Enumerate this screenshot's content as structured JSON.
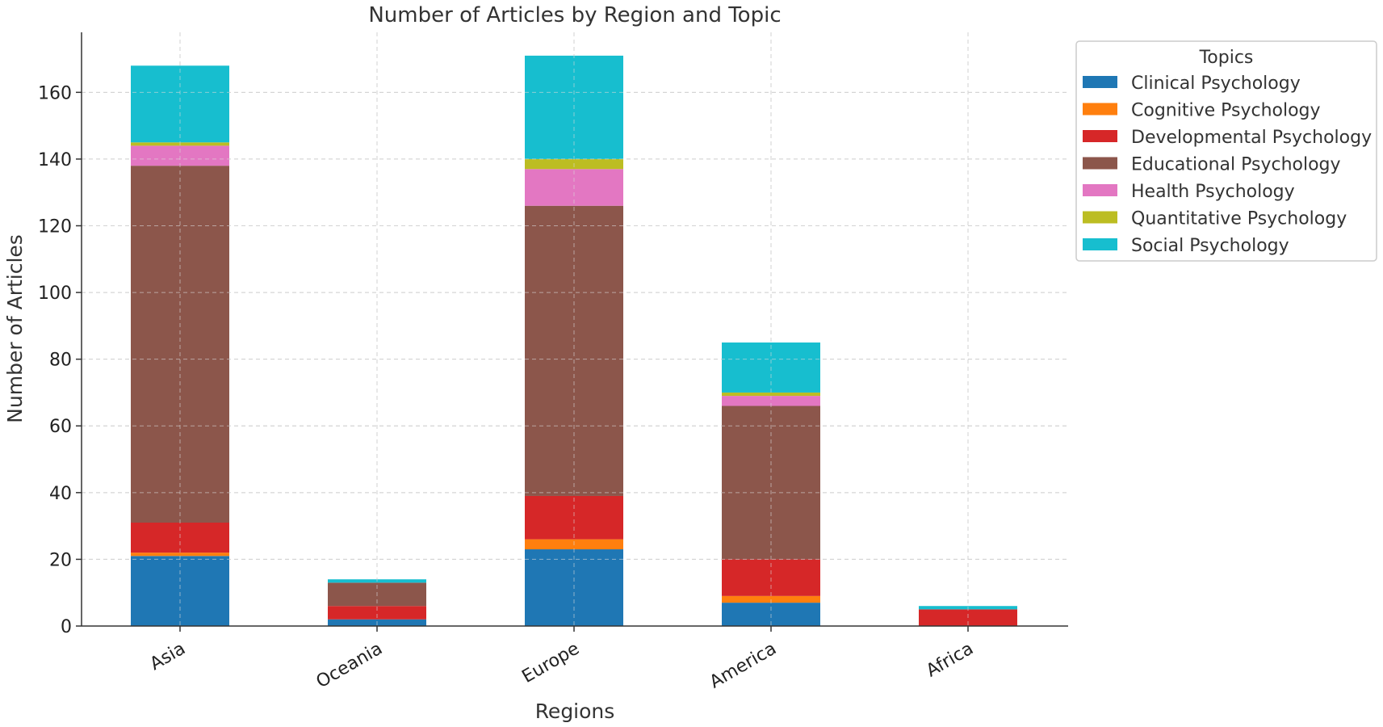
{
  "chart_data": {
    "type": "bar",
    "stacked": true,
    "title": "Number of Articles by Region and Topic",
    "xlabel": "Regions",
    "ylabel": "Number of Articles",
    "categories": [
      "Asia",
      "Oceania",
      "Europe",
      "America",
      "Africa"
    ],
    "ylim": [
      0,
      178
    ],
    "yticks": [
      0,
      20,
      40,
      60,
      80,
      100,
      120,
      140,
      160
    ],
    "grid": true,
    "legend": {
      "title": "Topics",
      "placement": "outside-top-right"
    },
    "series": [
      {
        "name": "Clinical Psychology",
        "color": "#1f77b4",
        "values": [
          21,
          2,
          23,
          7,
          0
        ]
      },
      {
        "name": "Cognitive Psychology",
        "color": "#ff7f0e",
        "values": [
          1,
          0,
          3,
          2,
          0
        ]
      },
      {
        "name": "Developmental Psychology",
        "color": "#d62728",
        "values": [
          9,
          4,
          13,
          11,
          5
        ]
      },
      {
        "name": "Educational Psychology",
        "color": "#8c564b",
        "values": [
          107,
          7,
          87,
          46,
          0
        ]
      },
      {
        "name": "Health Psychology",
        "color": "#e377c2",
        "values": [
          6,
          0,
          11,
          3,
          0
        ]
      },
      {
        "name": "Quantitative Psychology",
        "color": "#bcbd22",
        "values": [
          1,
          0,
          3,
          1,
          0
        ]
      },
      {
        "name": "Social Psychology",
        "color": "#17becf",
        "values": [
          23,
          1,
          31,
          15,
          1
        ]
      }
    ]
  }
}
